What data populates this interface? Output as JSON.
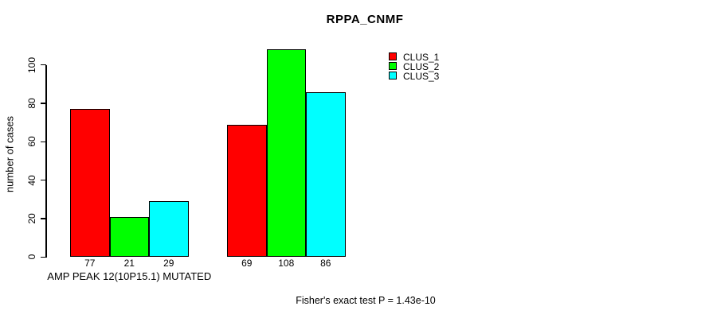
{
  "chart_data": {
    "type": "bar",
    "title": "RPPA_CNMF",
    "ylabel": "number of cases",
    "xlabel": "",
    "ylim": [
      0,
      110
    ],
    "yticks": [
      0,
      20,
      40,
      60,
      80,
      100
    ],
    "grid": false,
    "background_color": "#ffffff",
    "axis_color": "#000000",
    "categories": [
      "AMP PEAK 12(10P15.1) MUTATED",
      ""
    ],
    "series": [
      {
        "name": "CLUS_1",
        "color": "#ff0000",
        "values": [
          77,
          69
        ]
      },
      {
        "name": "CLUS_2",
        "color": "#00ff00",
        "values": [
          21,
          108
        ]
      },
      {
        "name": "CLUS_3",
        "color": "#00ffff",
        "values": [
          29,
          86
        ]
      }
    ],
    "show_bar_value_labels": true,
    "legend": {
      "position": "top-right",
      "entries": [
        {
          "label": "CLUS_1",
          "color": "#ff0000"
        },
        {
          "label": "CLUS_2",
          "color": "#00ff00"
        },
        {
          "label": "CLUS_3",
          "color": "#00ffff"
        }
      ]
    },
    "annotation": "Fisher's exact test P = 1.43e-10"
  }
}
